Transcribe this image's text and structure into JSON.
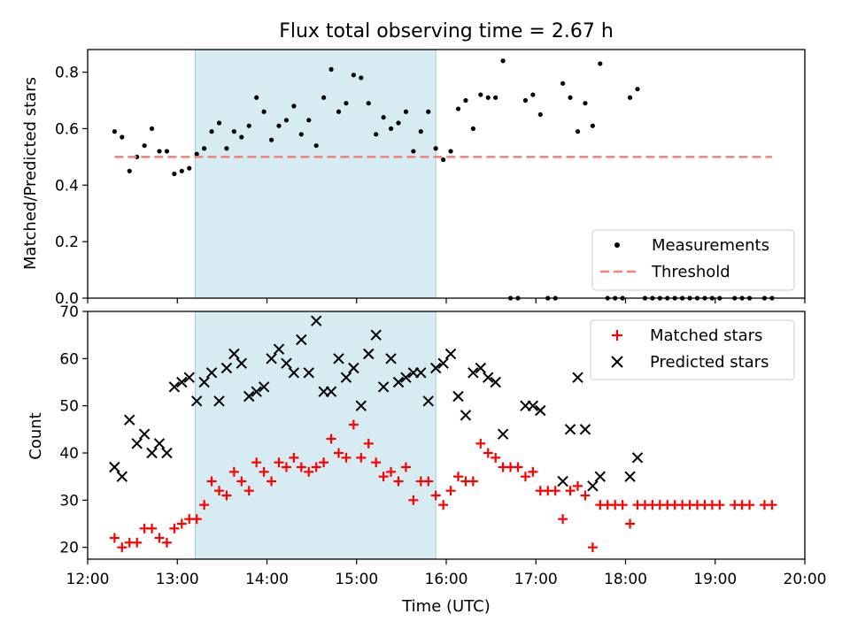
{
  "chart_data": [
    {
      "type": "scatter",
      "title": "Flux total observing time = 2.67 h",
      "xlabel": "",
      "ylabel": "Matched/Predicted stars",
      "xlim": [
        "12:00",
        "20:00"
      ],
      "ylim": [
        0,
        0.88
      ],
      "yticks": [
        0.0,
        0.2,
        0.4,
        0.6,
        0.8
      ],
      "ytick_labels": [
        "0.0",
        "0.2",
        "0.4",
        "0.6",
        "0.8"
      ],
      "shaded_region": [
        "13:12",
        "15:53"
      ],
      "legend_position": "lower right",
      "series": [
        {
          "name": "Measurements",
          "marker": "dot",
          "color": "#000000",
          "points": [
            [
              "12:18",
              0.59
            ],
            [
              "12:23",
              0.57
            ],
            [
              "12:28",
              0.45
            ],
            [
              "12:33",
              0.5
            ],
            [
              "12:38",
              0.54
            ],
            [
              "12:43",
              0.6
            ],
            [
              "12:48",
              0.52
            ],
            [
              "12:53",
              0.52
            ],
            [
              "12:58",
              0.44
            ],
            [
              "13:03",
              0.45
            ],
            [
              "13:08",
              0.46
            ],
            [
              "13:13",
              0.51
            ],
            [
              "13:18",
              0.53
            ],
            [
              "13:23",
              0.59
            ],
            [
              "13:28",
              0.62
            ],
            [
              "13:33",
              0.53
            ],
            [
              "13:38",
              0.59
            ],
            [
              "13:43",
              0.57
            ],
            [
              "13:48",
              0.61
            ],
            [
              "13:53",
              0.71
            ],
            [
              "13:58",
              0.66
            ],
            [
              "14:03",
              0.56
            ],
            [
              "14:08",
              0.61
            ],
            [
              "14:13",
              0.63
            ],
            [
              "14:18",
              0.68
            ],
            [
              "14:23",
              0.58
            ],
            [
              "14:28",
              0.63
            ],
            [
              "14:33",
              0.54
            ],
            [
              "14:38",
              0.71
            ],
            [
              "14:43",
              0.81
            ],
            [
              "14:48",
              0.66
            ],
            [
              "14:53",
              0.69
            ],
            [
              "14:58",
              0.79
            ],
            [
              "15:03",
              0.78
            ],
            [
              "15:08",
              0.69
            ],
            [
              "15:13",
              0.58
            ],
            [
              "15:18",
              0.64
            ],
            [
              "15:23",
              0.6
            ],
            [
              "15:28",
              0.62
            ],
            [
              "15:33",
              0.66
            ],
            [
              "15:38",
              0.52
            ],
            [
              "15:43",
              0.59
            ],
            [
              "15:48",
              0.66
            ],
            [
              "15:53",
              0.53
            ],
            [
              "15:58",
              0.49
            ],
            [
              "16:03",
              0.52
            ],
            [
              "16:08",
              0.67
            ],
            [
              "16:13",
              0.7
            ],
            [
              "16:18",
              0.6
            ],
            [
              "16:23",
              0.72
            ],
            [
              "16:28",
              0.71
            ],
            [
              "16:33",
              0.71
            ],
            [
              "16:38",
              0.84
            ],
            [
              "16:43",
              0.0
            ],
            [
              "16:48",
              0.0
            ],
            [
              "16:53",
              0.7
            ],
            [
              "16:58",
              0.72
            ],
            [
              "17:03",
              0.65
            ],
            [
              "17:08",
              0.0
            ],
            [
              "17:13",
              0.0
            ],
            [
              "17:18",
              0.76
            ],
            [
              "17:23",
              0.71
            ],
            [
              "17:28",
              0.59
            ],
            [
              "17:33",
              0.69
            ],
            [
              "17:38",
              0.61
            ],
            [
              "17:43",
              0.83
            ],
            [
              "17:48",
              0.0
            ],
            [
              "17:53",
              0.0
            ],
            [
              "17:58",
              0.0
            ],
            [
              "18:03",
              0.71
            ],
            [
              "18:08",
              0.74
            ],
            [
              "18:13",
              0.0
            ],
            [
              "18:18",
              0.0
            ],
            [
              "18:23",
              0.0
            ],
            [
              "18:28",
              0.0
            ],
            [
              "18:33",
              0.0
            ],
            [
              "18:38",
              0.0
            ],
            [
              "18:43",
              0.0
            ],
            [
              "18:48",
              0.0
            ],
            [
              "18:53",
              0.0
            ],
            [
              "18:58",
              0.0
            ],
            [
              "19:03",
              0.0
            ],
            [
              "19:13",
              0.0
            ],
            [
              "19:18",
              0.0
            ],
            [
              "19:23",
              0.0
            ],
            [
              "19:33",
              0.0
            ],
            [
              "19:38",
              0.0
            ]
          ]
        },
        {
          "name": "Threshold",
          "marker": "dashed-line",
          "color": "#f08080",
          "points": [
            [
              "12:18",
              0.5
            ],
            [
              "19:38",
              0.5
            ]
          ]
        }
      ]
    },
    {
      "type": "scatter",
      "title": "",
      "xlabel": "Time (UTC)",
      "ylabel": "Count",
      "xlim": [
        "12:00",
        "20:00"
      ],
      "ylim": [
        17.5,
        70
      ],
      "yticks": [
        20,
        30,
        40,
        50,
        60,
        70
      ],
      "ytick_labels": [
        "20",
        "30",
        "40",
        "50",
        "60",
        "70"
      ],
      "xtick_labels": [
        "12:00",
        "13:00",
        "14:00",
        "15:00",
        "16:00",
        "17:00",
        "18:00",
        "19:00",
        "20:00"
      ],
      "shaded_region": [
        "13:12",
        "15:53"
      ],
      "legend_position": "upper right",
      "series": [
        {
          "name": "Matched stars",
          "marker": "plus",
          "color": "#ff0000",
          "points": [
            [
              "12:18",
              22
            ],
            [
              "12:23",
              20
            ],
            [
              "12:28",
              21
            ],
            [
              "12:33",
              21
            ],
            [
              "12:38",
              24
            ],
            [
              "12:43",
              24
            ],
            [
              "12:48",
              22
            ],
            [
              "12:53",
              21
            ],
            [
              "12:58",
              24
            ],
            [
              "13:03",
              25
            ],
            [
              "13:08",
              26
            ],
            [
              "13:13",
              26
            ],
            [
              "13:18",
              29
            ],
            [
              "13:23",
              34
            ],
            [
              "13:28",
              32
            ],
            [
              "13:33",
              31
            ],
            [
              "13:38",
              36
            ],
            [
              "13:43",
              34
            ],
            [
              "13:48",
              32
            ],
            [
              "13:53",
              38
            ],
            [
              "13:58",
              36
            ],
            [
              "14:03",
              34
            ],
            [
              "14:08",
              38
            ],
            [
              "14:13",
              37
            ],
            [
              "14:18",
              39
            ],
            [
              "14:23",
              37
            ],
            [
              "14:28",
              36
            ],
            [
              "14:33",
              37
            ],
            [
              "14:38",
              38
            ],
            [
              "14:43",
              43
            ],
            [
              "14:48",
              40
            ],
            [
              "14:53",
              39
            ],
            [
              "14:58",
              46
            ],
            [
              "15:03",
              39
            ],
            [
              "15:08",
              42
            ],
            [
              "15:13",
              38
            ],
            [
              "15:18",
              35
            ],
            [
              "15:23",
              36
            ],
            [
              "15:28",
              34
            ],
            [
              "15:33",
              37
            ],
            [
              "15:38",
              30
            ],
            [
              "15:43",
              34
            ],
            [
              "15:48",
              34
            ],
            [
              "15:53",
              31
            ],
            [
              "15:58",
              29
            ],
            [
              "16:03",
              32
            ],
            [
              "16:08",
              35
            ],
            [
              "16:13",
              34
            ],
            [
              "16:18",
              34
            ],
            [
              "16:23",
              42
            ],
            [
              "16:28",
              40
            ],
            [
              "16:33",
              39
            ],
            [
              "16:38",
              37
            ],
            [
              "16:43",
              37
            ],
            [
              "16:48",
              37
            ],
            [
              "16:53",
              35
            ],
            [
              "16:58",
              36
            ],
            [
              "17:03",
              32
            ],
            [
              "17:08",
              32
            ],
            [
              "17:13",
              32
            ],
            [
              "17:18",
              26
            ],
            [
              "17:23",
              32
            ],
            [
              "17:28",
              33
            ],
            [
              "17:33",
              31
            ],
            [
              "17:38",
              20
            ],
            [
              "17:43",
              29
            ],
            [
              "17:48",
              29
            ],
            [
              "17:53",
              29
            ],
            [
              "17:58",
              29
            ],
            [
              "18:03",
              25
            ],
            [
              "18:08",
              29
            ],
            [
              "18:13",
              29
            ],
            [
              "18:18",
              29
            ],
            [
              "18:23",
              29
            ],
            [
              "18:28",
              29
            ],
            [
              "18:33",
              29
            ],
            [
              "18:38",
              29
            ],
            [
              "18:43",
              29
            ],
            [
              "18:48",
              29
            ],
            [
              "18:53",
              29
            ],
            [
              "18:58",
              29
            ],
            [
              "19:03",
              29
            ],
            [
              "19:13",
              29
            ],
            [
              "19:18",
              29
            ],
            [
              "19:23",
              29
            ],
            [
              "19:33",
              29
            ],
            [
              "19:38",
              29
            ]
          ]
        },
        {
          "name": "Predicted stars",
          "marker": "x",
          "color": "#000000",
          "points": [
            [
              "12:18",
              37
            ],
            [
              "12:23",
              35
            ],
            [
              "12:28",
              47
            ],
            [
              "12:33",
              42
            ],
            [
              "12:38",
              44
            ],
            [
              "12:43",
              40
            ],
            [
              "12:48",
              42
            ],
            [
              "12:53",
              40
            ],
            [
              "12:58",
              54
            ],
            [
              "13:03",
              55
            ],
            [
              "13:08",
              56
            ],
            [
              "13:13",
              51
            ],
            [
              "13:18",
              55
            ],
            [
              "13:23",
              57
            ],
            [
              "13:28",
              51
            ],
            [
              "13:33",
              58
            ],
            [
              "13:38",
              61
            ],
            [
              "13:43",
              59
            ],
            [
              "13:48",
              52
            ],
            [
              "13:53",
              53
            ],
            [
              "13:58",
              54
            ],
            [
              "14:03",
              60
            ],
            [
              "14:08",
              62
            ],
            [
              "14:13",
              59
            ],
            [
              "14:18",
              57
            ],
            [
              "14:23",
              64
            ],
            [
              "14:28",
              57
            ],
            [
              "14:33",
              68
            ],
            [
              "14:38",
              53
            ],
            [
              "14:43",
              53
            ],
            [
              "14:48",
              60
            ],
            [
              "14:53",
              56
            ],
            [
              "14:58",
              58
            ],
            [
              "15:03",
              50
            ],
            [
              "15:08",
              61
            ],
            [
              "15:13",
              65
            ],
            [
              "15:18",
              54
            ],
            [
              "15:23",
              60
            ],
            [
              "15:28",
              55
            ],
            [
              "15:33",
              56
            ],
            [
              "15:38",
              57
            ],
            [
              "15:43",
              57
            ],
            [
              "15:48",
              51
            ],
            [
              "15:53",
              58
            ],
            [
              "15:58",
              59
            ],
            [
              "16:03",
              61
            ],
            [
              "16:08",
              52
            ],
            [
              "16:13",
              48
            ],
            [
              "16:18",
              57
            ],
            [
              "16:23",
              58
            ],
            [
              "16:28",
              56
            ],
            [
              "16:33",
              55
            ],
            [
              "16:38",
              44
            ],
            [
              "16:53",
              50
            ],
            [
              "16:58",
              50
            ],
            [
              "17:03",
              49
            ],
            [
              "17:18",
              34
            ],
            [
              "17:23",
              45
            ],
            [
              "17:28",
              56
            ],
            [
              "17:33",
              45
            ],
            [
              "17:38",
              33
            ],
            [
              "17:43",
              35
            ],
            [
              "18:03",
              35
            ],
            [
              "18:08",
              39
            ]
          ]
        }
      ]
    }
  ]
}
